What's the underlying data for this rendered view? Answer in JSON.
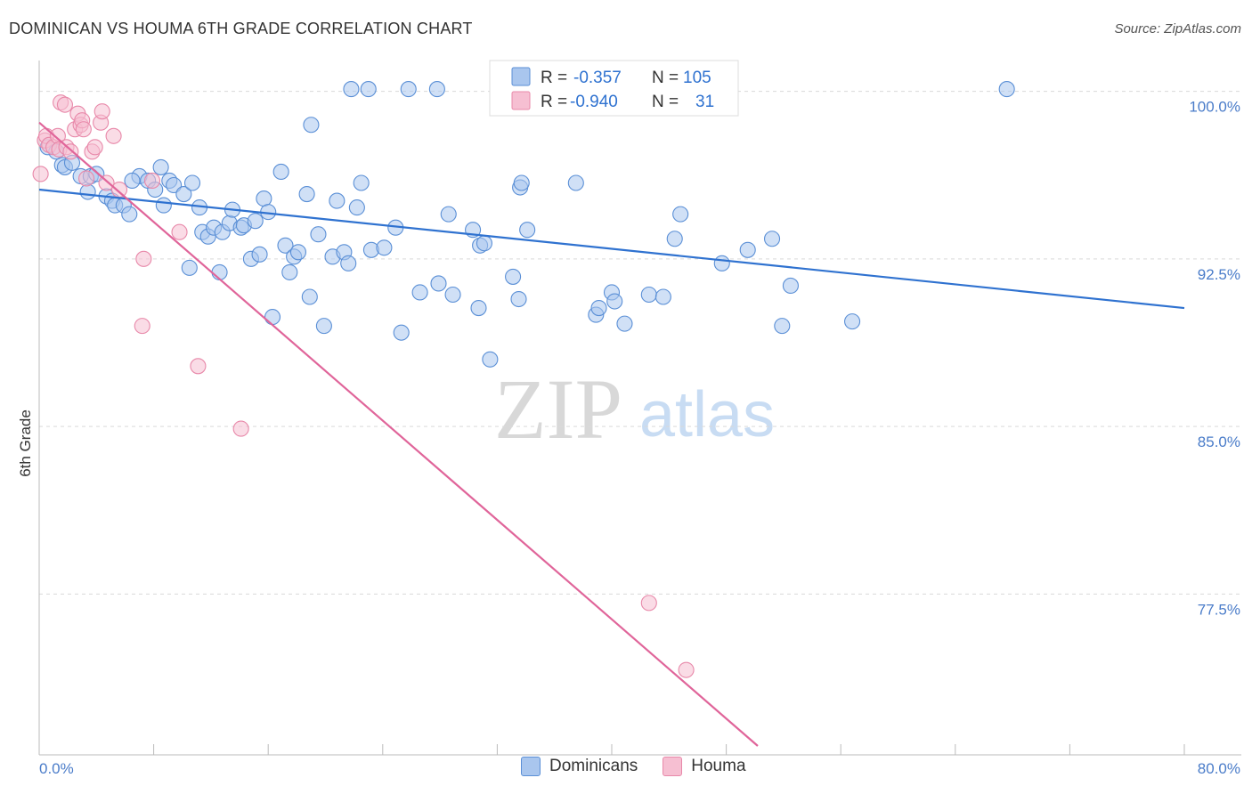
{
  "header": {
    "title": "DOMINICAN VS HOUMA 6TH GRADE CORRELATION CHART",
    "source": "Source: ZipAtlas.com"
  },
  "watermark": {
    "zip": "ZIP",
    "atlas": "atlas"
  },
  "colors": {
    "blue_fill": "#a9c6ee",
    "blue_stroke": "#5a8fd6",
    "blue_line": "#2f72d0",
    "pink_fill": "#f6bfd2",
    "pink_stroke": "#e888a9",
    "pink_line": "#e0659a",
    "tick_text": "#4a7cc9",
    "grid": "#d9d9d9"
  },
  "legend_top": {
    "rows": [
      {
        "r_label": "R =",
        "r_value": "-0.357",
        "n_label": "N =",
        "n_value": "105"
      },
      {
        "r_label": "R =",
        "r_value": "-0.940",
        "n_label": "N =",
        "n_value": "31"
      }
    ]
  },
  "legend_bottom": {
    "items": [
      "Dominicans",
      "Houma"
    ]
  },
  "chart_data": {
    "type": "scatter",
    "title": "DOMINICAN VS HOUMA 6TH GRADE CORRELATION CHART",
    "xlabel": "",
    "ylabel": "6th Grade",
    "xlim": [
      0,
      80
    ],
    "ylim": [
      70.7,
      100.9
    ],
    "x_tick_labels": [
      "0.0%",
      "80.0%"
    ],
    "y_tick_labels": [
      "100.0%",
      "92.5%",
      "85.0%",
      "77.5%"
    ],
    "y_ticks": [
      100,
      92.5,
      85,
      77.5
    ],
    "grid": "horizontal dashed",
    "legend_position": "top-center",
    "series": [
      {
        "name": "Dominicans",
        "trend": {
          "x": [
            0,
            80
          ],
          "y": [
            95.6,
            90.3
          ]
        },
        "points": [
          [
            0.6,
            97.5
          ],
          [
            1.2,
            97.3
          ],
          [
            1.6,
            96.7
          ],
          [
            1.8,
            96.6
          ],
          [
            2.3,
            96.8
          ],
          [
            2.9,
            96.2
          ],
          [
            3.4,
            95.5
          ],
          [
            3.6,
            96.2
          ],
          [
            4.0,
            96.3
          ],
          [
            4.7,
            95.3
          ],
          [
            5.1,
            95.1
          ],
          [
            5.3,
            94.9
          ],
          [
            5.9,
            94.9
          ],
          [
            6.3,
            94.5
          ],
          [
            7.0,
            96.2
          ],
          [
            6.5,
            96.0
          ],
          [
            7.6,
            96.0
          ],
          [
            8.1,
            95.6
          ],
          [
            8.5,
            96.6
          ],
          [
            8.7,
            94.9
          ],
          [
            9.1,
            96.0
          ],
          [
            9.4,
            95.8
          ],
          [
            10.1,
            95.4
          ],
          [
            10.5,
            92.1
          ],
          [
            10.7,
            95.9
          ],
          [
            11.2,
            94.8
          ],
          [
            11.4,
            93.7
          ],
          [
            11.8,
            93.5
          ],
          [
            12.2,
            93.9
          ],
          [
            12.6,
            91.9
          ],
          [
            12.8,
            93.7
          ],
          [
            13.3,
            94.1
          ],
          [
            13.5,
            94.7
          ],
          [
            14.1,
            93.9
          ],
          [
            14.3,
            94.0
          ],
          [
            14.8,
            92.5
          ],
          [
            15.1,
            94.2
          ],
          [
            15.4,
            92.7
          ],
          [
            15.7,
            95.2
          ],
          [
            16.0,
            94.6
          ],
          [
            16.3,
            89.9
          ],
          [
            16.9,
            96.4
          ],
          [
            17.2,
            93.1
          ],
          [
            17.5,
            91.9
          ],
          [
            17.8,
            92.6
          ],
          [
            18.1,
            92.8
          ],
          [
            18.7,
            95.4
          ],
          [
            18.9,
            90.8
          ],
          [
            19.0,
            98.5
          ],
          [
            19.5,
            93.6
          ],
          [
            19.9,
            89.5
          ],
          [
            20.5,
            92.6
          ],
          [
            20.8,
            95.1
          ],
          [
            21.3,
            92.8
          ],
          [
            21.6,
            92.3
          ],
          [
            21.8,
            100.1
          ],
          [
            22.2,
            94.8
          ],
          [
            22.5,
            95.9
          ],
          [
            23.0,
            100.1
          ],
          [
            23.2,
            92.9
          ],
          [
            24.1,
            93.0
          ],
          [
            24.9,
            93.9
          ],
          [
            25.3,
            89.2
          ],
          [
            25.8,
            100.1
          ],
          [
            26.6,
            91.0
          ],
          [
            27.8,
            100.1
          ],
          [
            27.9,
            91.4
          ],
          [
            28.6,
            94.5
          ],
          [
            28.9,
            90.9
          ],
          [
            30.3,
            93.8
          ],
          [
            30.7,
            90.3
          ],
          [
            30.8,
            93.1
          ],
          [
            31.1,
            93.2
          ],
          [
            31.5,
            88.0
          ],
          [
            32.2,
            100.1
          ],
          [
            33.1,
            91.7
          ],
          [
            33.5,
            90.7
          ],
          [
            33.6,
            95.7
          ],
          [
            33.7,
            95.9
          ],
          [
            34.1,
            93.8
          ],
          [
            37.5,
            95.9
          ],
          [
            38.9,
            90.0
          ],
          [
            39.1,
            90.3
          ],
          [
            40.0,
            91.0
          ],
          [
            40.2,
            90.6
          ],
          [
            40.9,
            89.6
          ],
          [
            42.6,
            90.9
          ],
          [
            43.6,
            90.8
          ],
          [
            44.4,
            93.4
          ],
          [
            44.8,
            94.5
          ],
          [
            47.7,
            92.3
          ],
          [
            49.5,
            92.9
          ],
          [
            51.2,
            93.4
          ],
          [
            51.9,
            89.5
          ],
          [
            52.5,
            91.3
          ],
          [
            56.8,
            89.7
          ],
          [
            67.6,
            100.1
          ]
        ]
      },
      {
        "name": "Houma",
        "trend": {
          "x": [
            0,
            50.2
          ],
          "y": [
            98.6,
            70.7
          ]
        },
        "points": [
          [
            0.1,
            96.3
          ],
          [
            0.4,
            97.8
          ],
          [
            0.5,
            98.0
          ],
          [
            0.7,
            97.6
          ],
          [
            1.0,
            97.5
          ],
          [
            1.3,
            98.0
          ],
          [
            1.4,
            97.4
          ],
          [
            1.5,
            99.5
          ],
          [
            1.8,
            99.4
          ],
          [
            1.9,
            97.5
          ],
          [
            2.2,
            97.3
          ],
          [
            2.5,
            98.3
          ],
          [
            2.7,
            99.0
          ],
          [
            2.9,
            98.5
          ],
          [
            3.0,
            98.7
          ],
          [
            3.1,
            98.3
          ],
          [
            3.3,
            96.1
          ],
          [
            3.7,
            97.3
          ],
          [
            3.9,
            97.5
          ],
          [
            4.3,
            98.6
          ],
          [
            4.4,
            99.1
          ],
          [
            4.7,
            95.9
          ],
          [
            5.2,
            98.0
          ],
          [
            5.6,
            95.6
          ],
          [
            7.3,
            92.5
          ],
          [
            7.9,
            96.0
          ],
          [
            9.8,
            93.7
          ],
          [
            7.2,
            89.5
          ],
          [
            11.1,
            87.7
          ],
          [
            14.1,
            84.9
          ],
          [
            42.6,
            77.1
          ],
          [
            45.2,
            74.1
          ]
        ]
      }
    ]
  }
}
